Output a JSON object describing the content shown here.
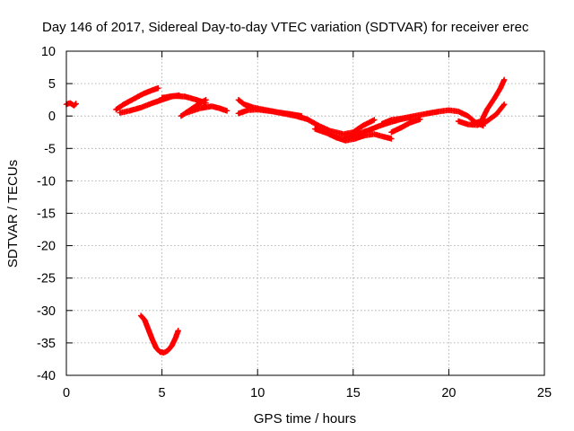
{
  "chart_data": {
    "type": "scatter",
    "title": "Day 146 of 2017, Sidereal Day-to-day VTEC variation (SDTVAR) for receiver erec",
    "xlabel": "GPS time / hours",
    "ylabel": "SDTVAR / TECUs",
    "xlim": [
      0,
      25
    ],
    "ylim": [
      -40,
      10
    ],
    "xticks": [
      0,
      5,
      10,
      15,
      20,
      25
    ],
    "yticks": [
      10,
      5,
      0,
      -5,
      -10,
      -15,
      -20,
      -25,
      -30,
      -35,
      -40
    ],
    "grid": true,
    "legend": "none",
    "marker": "plus",
    "color": "#ff0000",
    "series": [
      {
        "values": [
          [
            0.0,
            1.8
          ],
          [
            0.2,
            2.0
          ],
          [
            0.4,
            1.6
          ],
          [
            0.5,
            1.9
          ]
        ]
      },
      {
        "values": [
          [
            2.6,
            1.0
          ],
          [
            3.0,
            1.8
          ],
          [
            3.5,
            2.6
          ],
          [
            4.0,
            3.4
          ],
          [
            4.5,
            4.0
          ],
          [
            4.8,
            4.3
          ]
        ]
      },
      {
        "values": [
          [
            2.8,
            0.5
          ],
          [
            3.3,
            0.8
          ],
          [
            3.9,
            1.3
          ],
          [
            4.5,
            2.0
          ],
          [
            5.0,
            2.5
          ],
          [
            5.5,
            3.0
          ],
          [
            5.9,
            3.2
          ]
        ]
      },
      {
        "values": [
          [
            5.0,
            2.8
          ],
          [
            5.6,
            3.1
          ],
          [
            6.2,
            3.0
          ],
          [
            6.8,
            2.5
          ],
          [
            7.3,
            2.0
          ]
        ]
      },
      {
        "values": [
          [
            6.0,
            0.0
          ],
          [
            6.5,
            1.0
          ],
          [
            7.0,
            2.0
          ],
          [
            7.3,
            2.5
          ]
        ]
      },
      {
        "values": [
          [
            6.3,
            0.5
          ],
          [
            7.0,
            1.2
          ],
          [
            7.6,
            1.5
          ],
          [
            8.0,
            1.2
          ],
          [
            8.4,
            0.8
          ]
        ]
      },
      {
        "values": [
          [
            9.0,
            2.5
          ],
          [
            9.3,
            1.8
          ],
          [
            9.8,
            1.3
          ],
          [
            10.3,
            1.0
          ],
          [
            11.0,
            0.6
          ],
          [
            11.7,
            0.3
          ],
          [
            12.3,
            0.0
          ]
        ]
      },
      {
        "values": [
          [
            9.0,
            0.4
          ],
          [
            9.5,
            0.9
          ],
          [
            10.0,
            1.0
          ],
          [
            10.8,
            0.7
          ],
          [
            11.5,
            0.3
          ],
          [
            12.0,
            0.0
          ],
          [
            12.6,
            -0.5
          ],
          [
            13.2,
            -1.5
          ],
          [
            13.8,
            -2.3
          ],
          [
            14.5,
            -2.8
          ],
          [
            15.0,
            -2.5
          ],
          [
            15.5,
            -1.5
          ],
          [
            16.1,
            -0.6
          ]
        ]
      },
      {
        "values": [
          [
            13.0,
            -2.0
          ],
          [
            13.6,
            -2.6
          ],
          [
            14.1,
            -3.3
          ],
          [
            14.6,
            -3.8
          ],
          [
            15.1,
            -3.5
          ],
          [
            15.6,
            -3.0
          ],
          [
            16.1,
            -2.8
          ],
          [
            16.6,
            -3.2
          ],
          [
            17.0,
            -3.5
          ]
        ]
      },
      {
        "values": [
          [
            14.5,
            -3.4
          ],
          [
            15.2,
            -2.8
          ],
          [
            15.8,
            -2.2
          ],
          [
            16.3,
            -1.6
          ],
          [
            16.9,
            -1.0
          ],
          [
            17.5,
            -0.5
          ],
          [
            18.0,
            -0.2
          ]
        ]
      },
      {
        "values": [
          [
            16.5,
            -1.2
          ],
          [
            17.0,
            -0.6
          ],
          [
            17.5,
            -0.4
          ],
          [
            18.2,
            0.0
          ],
          [
            18.9,
            0.4
          ],
          [
            19.5,
            0.7
          ],
          [
            20.0,
            0.9
          ],
          [
            20.5,
            0.7
          ],
          [
            21.0,
            0.0
          ],
          [
            21.4,
            -1.0
          ],
          [
            21.8,
            -1.5
          ]
        ]
      },
      {
        "values": [
          [
            17.0,
            -2.5
          ],
          [
            17.5,
            -1.8
          ],
          [
            18.0,
            -1.0
          ],
          [
            18.5,
            -0.5
          ]
        ]
      },
      {
        "values": [
          [
            20.5,
            -0.8
          ],
          [
            21.0,
            -1.3
          ],
          [
            21.5,
            -1.4
          ],
          [
            22.0,
            -0.8
          ],
          [
            22.5,
            0.3
          ],
          [
            22.9,
            1.8
          ]
        ]
      },
      {
        "values": [
          [
            21.2,
            -1.2
          ],
          [
            21.7,
            -0.8
          ],
          [
            22.0,
            1.0
          ],
          [
            22.4,
            2.8
          ],
          [
            22.7,
            4.3
          ],
          [
            22.9,
            5.6
          ]
        ]
      },
      {
        "values": [
          [
            3.9,
            -30.8
          ],
          [
            4.1,
            -31.5
          ],
          [
            4.3,
            -33.0
          ],
          [
            4.5,
            -34.5
          ],
          [
            4.7,
            -35.8
          ],
          [
            4.9,
            -36.4
          ],
          [
            5.1,
            -36.5
          ],
          [
            5.3,
            -36.2
          ],
          [
            5.5,
            -35.5
          ],
          [
            5.7,
            -34.3
          ],
          [
            5.85,
            -33.1
          ]
        ]
      }
    ]
  }
}
